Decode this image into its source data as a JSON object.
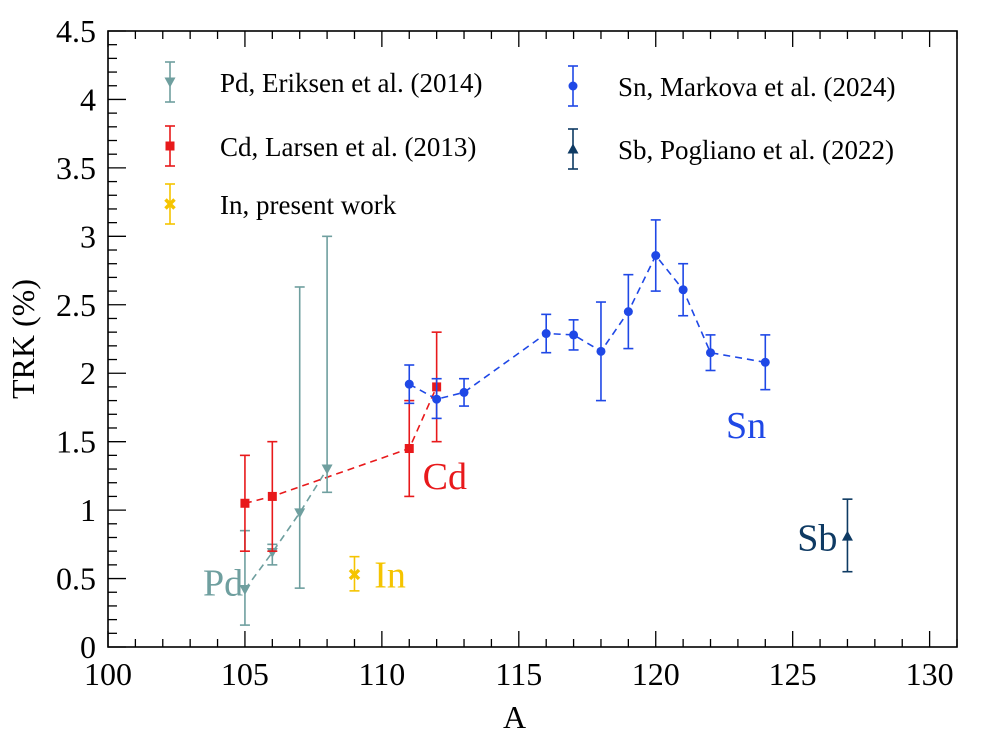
{
  "chart_data": {
    "type": "scatter",
    "xlabel": "A",
    "ylabel": "TRK (%)",
    "xlim": [
      100,
      131
    ],
    "ylim": [
      0,
      4.5
    ],
    "x_ticks": [
      100,
      105,
      110,
      115,
      120,
      125,
      130
    ],
    "y_ticks": [
      0,
      0.5,
      1,
      1.5,
      2,
      2.5,
      3,
      3.5,
      4,
      4.5
    ],
    "x_tick_labels": [
      "100",
      "105",
      "110",
      "115",
      "120",
      "125",
      "130"
    ],
    "y_tick_labels": [
      "0",
      "0.5",
      "1",
      "1.5",
      "2",
      "2.5",
      "3",
      "3.5",
      "4",
      "4.5"
    ],
    "grid": false,
    "legend_position": "top",
    "series": [
      {
        "id": "pd",
        "name": "Pd, Eriksen et al. (2014)",
        "color": "#6f9f9f",
        "marker": "triangle-down",
        "dashed_line": true,
        "points": [
          {
            "x": 105,
            "y": 0.42,
            "lo": 0.16,
            "hi": 0.85
          },
          {
            "x": 106,
            "y": 0.69,
            "lo": 0.6,
            "hi": 0.75
          },
          {
            "x": 107,
            "y": 0.98,
            "lo": 0.43,
            "hi": 2.63
          },
          {
            "x": 108,
            "y": 1.3,
            "lo": 1.13,
            "hi": 3.0
          }
        ]
      },
      {
        "id": "cd",
        "name": "Cd, Larsen et al. (2013)",
        "color": "#e8191b",
        "marker": "square",
        "dashed_line": true,
        "points": [
          {
            "x": 105,
            "y": 1.05,
            "lo": 0.7,
            "hi": 1.4
          },
          {
            "x": 106,
            "y": 1.1,
            "lo": 0.7,
            "hi": 1.5
          },
          {
            "x": 111,
            "y": 1.45,
            "lo": 1.1,
            "hi": 1.8
          },
          {
            "x": 112,
            "y": 1.9,
            "lo": 1.5,
            "hi": 2.3
          }
        ]
      },
      {
        "id": "in",
        "name": "In, present work",
        "color": "#f5c400",
        "marker": "cross",
        "dashed_line": false,
        "points": [
          {
            "x": 109,
            "y": 0.53,
            "lo": 0.41,
            "hi": 0.66
          }
        ]
      },
      {
        "id": "sn",
        "name": "Sn, Markova et al. (2024)",
        "color": "#1f48e6",
        "marker": "circle",
        "dashed_line": true,
        "points": [
          {
            "x": 111,
            "y": 1.92,
            "lo": 1.78,
            "hi": 2.06
          },
          {
            "x": 112,
            "y": 1.81,
            "lo": 1.67,
            "hi": 1.96
          },
          {
            "x": 113,
            "y": 1.86,
            "lo": 1.76,
            "hi": 1.96
          },
          {
            "x": 116,
            "y": 2.29,
            "lo": 2.15,
            "hi": 2.43
          },
          {
            "x": 117,
            "y": 2.28,
            "lo": 2.17,
            "hi": 2.39
          },
          {
            "x": 118,
            "y": 2.16,
            "lo": 1.8,
            "hi": 2.52
          },
          {
            "x": 119,
            "y": 2.45,
            "lo": 2.18,
            "hi": 2.72
          },
          {
            "x": 120,
            "y": 2.86,
            "lo": 2.6,
            "hi": 3.12
          },
          {
            "x": 121,
            "y": 2.61,
            "lo": 2.42,
            "hi": 2.8
          },
          {
            "x": 122,
            "y": 2.15,
            "lo": 2.02,
            "hi": 2.28
          },
          {
            "x": 124,
            "y": 2.08,
            "lo": 1.88,
            "hi": 2.28
          }
        ]
      },
      {
        "id": "sb",
        "name": "Sb, Pogliano et al. (2022)",
        "color": "#0e3a63",
        "marker": "triangle-up",
        "dashed_line": false,
        "points": [
          {
            "x": 127,
            "y": 0.81,
            "lo": 0.55,
            "hi": 1.08
          }
        ]
      }
    ],
    "annotations": [
      {
        "text": "Pd",
        "x": 104.2,
        "y": 0.47,
        "color": "#6f9f9f"
      },
      {
        "text": "In",
        "x": 110.3,
        "y": 0.53,
        "color": "#f5c400"
      },
      {
        "text": "Cd",
        "x": 112.3,
        "y": 1.25,
        "color": "#e8191b"
      },
      {
        "text": "Sn",
        "x": 123.3,
        "y": 1.62,
        "color": "#1f48e6"
      },
      {
        "text": "Sb",
        "x": 125.9,
        "y": 0.8,
        "color": "#0e3a63"
      }
    ]
  }
}
